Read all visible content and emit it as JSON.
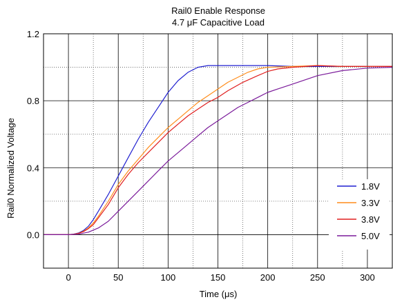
{
  "chart_data": {
    "type": "line",
    "title": "Rail0 Enable Response",
    "subtitle": "4.7 μF Capacitive Load",
    "xlabel": "Time (μs)",
    "ylabel": "Rail0 Normalized Voltage",
    "xlim": [
      -25,
      325
    ],
    "ylim": [
      -0.2,
      1.2
    ],
    "x_ticks": [
      0,
      50,
      100,
      150,
      200,
      250,
      300
    ],
    "x_tick_labels": [
      "0",
      "50",
      "100",
      "150",
      "200",
      "250",
      "300"
    ],
    "x_minor_ticks": [
      25,
      75,
      125,
      175,
      225,
      275
    ],
    "y_ticks": [
      0.0,
      0.4,
      0.8,
      1.2
    ],
    "y_tick_labels": [
      "0.0",
      "0.4",
      "0.8",
      "1.2"
    ],
    "y_minor_ticks": [
      0.2,
      0.6,
      1.0
    ],
    "grid": true,
    "legend_position": "bottom-right",
    "series": [
      {
        "name": "1.8V",
        "color": "#1f1fd0",
        "x": [
          -25,
          0,
          5,
          10,
          15,
          20,
          25,
          30,
          40,
          50,
          60,
          70,
          80,
          90,
          100,
          110,
          120,
          130,
          140,
          150,
          175,
          200,
          225,
          250,
          275,
          300,
          325
        ],
        "y": [
          0.0,
          0.0,
          0.003,
          0.01,
          0.025,
          0.05,
          0.09,
          0.14,
          0.24,
          0.35,
          0.46,
          0.57,
          0.67,
          0.76,
          0.85,
          0.92,
          0.97,
          1.0,
          1.01,
          1.01,
          1.01,
          1.01,
          1.005,
          1.005,
          1.005,
          1.005,
          1.005
        ]
      },
      {
        "name": "3.3V",
        "color": "#ff8c1a",
        "x": [
          -25,
          0,
          5,
          10,
          15,
          20,
          25,
          30,
          40,
          50,
          60,
          70,
          80,
          90,
          100,
          110,
          120,
          130,
          140,
          150,
          160,
          170,
          180,
          190,
          200,
          225,
          250,
          275,
          300,
          325
        ],
        "y": [
          0.0,
          0.0,
          0.002,
          0.008,
          0.02,
          0.04,
          0.07,
          0.11,
          0.2,
          0.3,
          0.38,
          0.45,
          0.52,
          0.58,
          0.64,
          0.69,
          0.74,
          0.79,
          0.83,
          0.87,
          0.91,
          0.94,
          0.97,
          0.99,
          1.0,
          1.005,
          1.01,
          1.005,
          1.005,
          1.005
        ]
      },
      {
        "name": "3.8V",
        "color": "#e01e1e",
        "x": [
          -25,
          0,
          5,
          10,
          15,
          20,
          25,
          30,
          40,
          50,
          60,
          70,
          80,
          90,
          100,
          110,
          120,
          130,
          140,
          150,
          160,
          175,
          190,
          200,
          210,
          225,
          250,
          275,
          300,
          325
        ],
        "y": [
          0.0,
          0.0,
          0.002,
          0.007,
          0.018,
          0.036,
          0.06,
          0.1,
          0.18,
          0.28,
          0.36,
          0.43,
          0.49,
          0.55,
          0.61,
          0.66,
          0.71,
          0.75,
          0.79,
          0.82,
          0.86,
          0.91,
          0.95,
          0.975,
          0.99,
          1.0,
          1.01,
          1.005,
          1.005,
          1.005
        ]
      },
      {
        "name": "5.0V",
        "color": "#7a1a9a",
        "x": [
          -25,
          0,
          10,
          20,
          30,
          40,
          50,
          60,
          70,
          80,
          90,
          100,
          110,
          120,
          130,
          140,
          150,
          160,
          170,
          180,
          190,
          200,
          210,
          225,
          250,
          275,
          300,
          325
        ],
        "y": [
          0.0,
          0.0,
          0.003,
          0.015,
          0.04,
          0.08,
          0.14,
          0.2,
          0.26,
          0.32,
          0.38,
          0.44,
          0.49,
          0.54,
          0.59,
          0.64,
          0.68,
          0.72,
          0.76,
          0.79,
          0.82,
          0.85,
          0.87,
          0.9,
          0.95,
          0.98,
          0.995,
          1.0
        ]
      }
    ]
  }
}
